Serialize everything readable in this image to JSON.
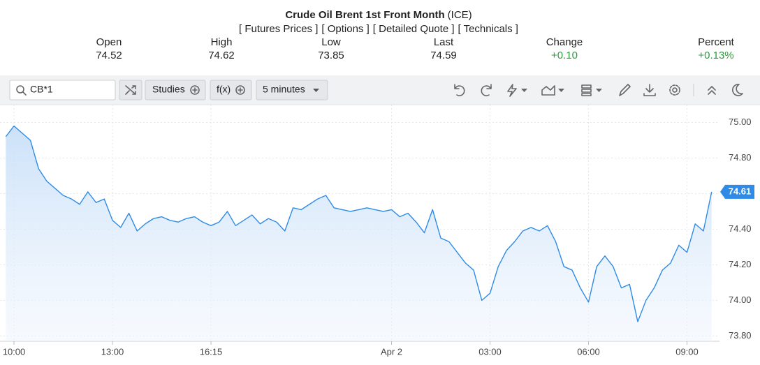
{
  "header": {
    "title": "Crude Oil Brent 1st Front Month",
    "exchange": "(ICE)",
    "links": [
      "[ Futures Prices ]",
      "[ Options ]",
      "[ Detailed Quote ]",
      "[ Technicals ]"
    ],
    "stats": [
      {
        "label": "Open",
        "value": "74.52"
      },
      {
        "label": "High",
        "value": "74.62"
      },
      {
        "label": "Low",
        "value": "73.85"
      },
      {
        "label": "Last",
        "value": "74.59"
      },
      {
        "label": "Change",
        "value": "+0.10",
        "color": "#2e9a3e"
      },
      {
        "label": "Percent",
        "value": "+0.13%",
        "color": "#2e9a3e"
      }
    ]
  },
  "toolbar": {
    "symbol": "CB*1",
    "studies": "Studies",
    "fx": "f(x)",
    "interval": "5 minutes"
  },
  "chart_data": {
    "type": "area",
    "color": "#2f8be6",
    "grid": true,
    "categories": [
      null,
      "10:00",
      null,
      null,
      null,
      null,
      null,
      null,
      null,
      null,
      null,
      null,
      null,
      "13:00",
      null,
      null,
      null,
      null,
      null,
      null,
      null,
      null,
      null,
      null,
      null,
      "16:15",
      null,
      null,
      null,
      null,
      null,
      null,
      null,
      null,
      null,
      null,
      null,
      null,
      null,
      null,
      null,
      null,
      null,
      null,
      null,
      null,
      null,
      "Apr 2",
      null,
      null,
      null,
      null,
      null,
      null,
      null,
      null,
      null,
      null,
      null,
      "03:00",
      null,
      null,
      null,
      null,
      null,
      null,
      null,
      null,
      null,
      null,
      null,
      "06:00",
      null,
      null,
      null,
      null,
      null,
      null,
      null,
      null,
      null,
      null,
      null,
      "09:00",
      null,
      null,
      null
    ],
    "values": [
      74.92,
      74.98,
      74.94,
      74.9,
      74.74,
      74.67,
      74.63,
      74.59,
      74.57,
      74.54,
      74.61,
      74.55,
      74.57,
      74.45,
      74.41,
      74.49,
      74.39,
      74.43,
      74.46,
      74.47,
      74.45,
      74.44,
      74.46,
      74.47,
      74.44,
      74.42,
      74.44,
      74.5,
      74.42,
      74.45,
      74.48,
      74.43,
      74.46,
      74.44,
      74.39,
      74.52,
      74.51,
      74.54,
      74.57,
      74.59,
      74.52,
      74.51,
      74.5,
      74.51,
      74.52,
      74.51,
      74.5,
      74.51,
      74.47,
      74.49,
      74.44,
      74.38,
      74.51,
      74.35,
      74.33,
      74.27,
      74.21,
      74.17,
      74.0,
      74.04,
      74.19,
      74.28,
      74.33,
      74.39,
      74.41,
      74.39,
      74.42,
      74.33,
      74.19,
      74.17,
      74.07,
      73.99,
      74.19,
      74.25,
      74.19,
      74.07,
      74.09,
      73.88,
      74.0,
      74.07,
      74.17,
      74.21,
      74.31,
      74.27,
      74.43,
      74.39,
      74.61
    ],
    "last_price_label": "74.61",
    "ylim": [
      73.77,
      75.1
    ],
    "yticks": [
      {
        "value": 73.8,
        "label": "73.80"
      },
      {
        "value": 74,
        "label": "74.00"
      },
      {
        "value": 74.2,
        "label": "74.20"
      },
      {
        "value": 74.4,
        "label": "74.40"
      },
      {
        "value": 74.6,
        "label": "74.60"
      },
      {
        "value": 74.8,
        "label": "74.80"
      },
      {
        "value": 75,
        "label": "75.00"
      }
    ]
  }
}
